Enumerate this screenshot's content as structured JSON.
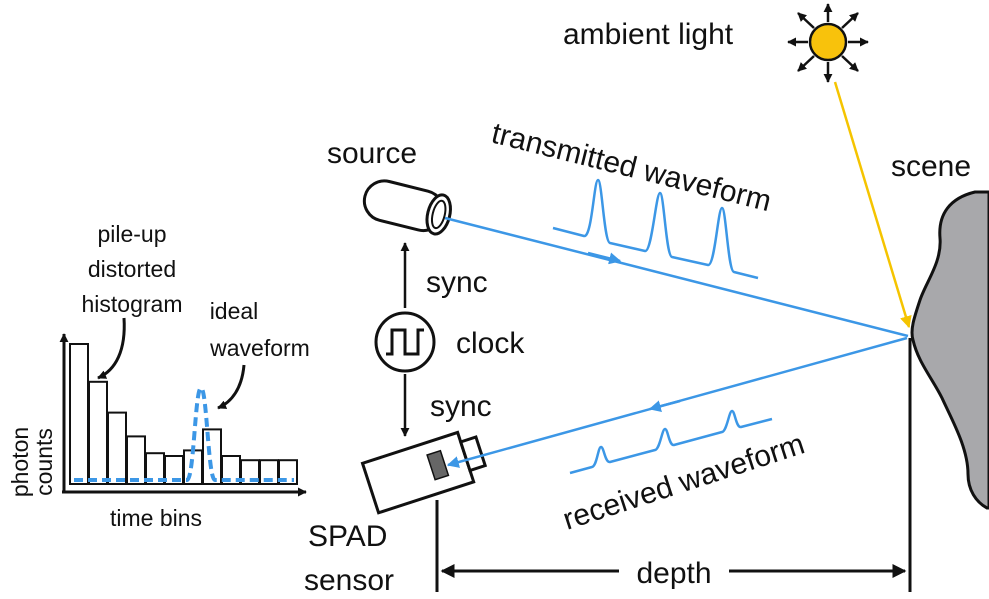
{
  "labels": {
    "ambient_light": "ambient light",
    "source": "source",
    "transmitted_waveform": "transmitted waveform",
    "scene": "scene",
    "sync_top": "sync",
    "clock": "clock",
    "sync_bottom": "sync",
    "received_waveform": "received waveform",
    "spad_line1": "SPAD",
    "spad_line2": "sensor",
    "depth": "depth",
    "pileup_line1": "pile-up",
    "pileup_line2": "distorted",
    "pileup_line3": "histogram",
    "ideal_line1": "ideal",
    "ideal_line2": "waveform",
    "photon_line1": "photon",
    "photon_line2": "counts",
    "time_bins": "time bins"
  },
  "histogram": {
    "bars": [
      10,
      7.3,
      5.1,
      3.4,
      2.2,
      2.0,
      2.4,
      3.9,
      2.0,
      1.7,
      1.7,
      1.7
    ],
    "ideal_waveform_peak_bin": 7
  },
  "colors": {
    "light_path": "#3c97e6",
    "ambient_ray": "#f5c400",
    "sun": "#f8c20c",
    "scene_fill": "#a8a8ab",
    "outline": "#111111"
  }
}
